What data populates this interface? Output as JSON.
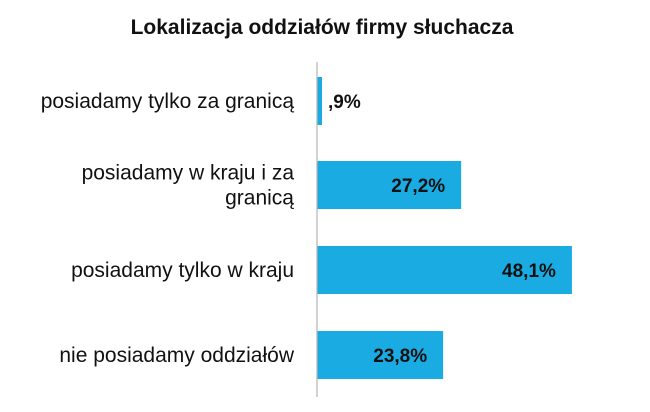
{
  "chart_data": {
    "type": "bar",
    "orientation": "horizontal",
    "title": "Lokalizacja oddziałów firmy słuchacza",
    "categories": [
      [
        "posiadamy tylko za granicą"
      ],
      [
        "posiadamy w kraju i za",
        "granicą"
      ],
      [
        "posiadamy tylko w kraju"
      ],
      [
        "nie posiadamy oddziałów"
      ]
    ],
    "values": [
      0.9,
      27.2,
      48.1,
      23.8
    ],
    "data_labels": [
      ",9%",
      "27,2%",
      "48,1%",
      "23,8%"
    ],
    "xlim": [
      0,
      50
    ],
    "grid": false,
    "legend": "none",
    "bar_color": "#1aabe2"
  }
}
